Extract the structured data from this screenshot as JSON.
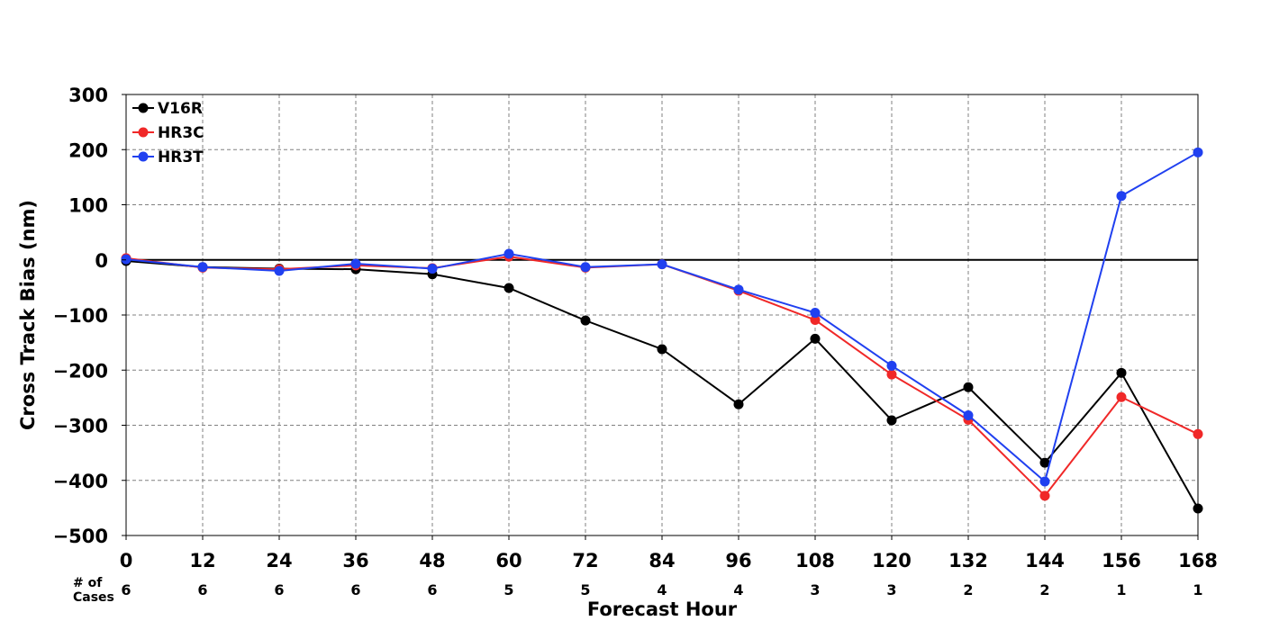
{
  "chart_data": {
    "type": "line",
    "title": "",
    "xlabel": "Forecast Hour",
    "ylabel": "Cross Track Bias (nm)",
    "xlim": [
      0,
      168
    ],
    "ylim": [
      -500,
      300
    ],
    "x": [
      0,
      12,
      24,
      36,
      48,
      60,
      72,
      84,
      96,
      108,
      120,
      132,
      144,
      156,
      168
    ],
    "x_ticks": [
      "0",
      "12",
      "24",
      "36",
      "48",
      "60",
      "72",
      "84",
      "96",
      "108",
      "120",
      "132",
      "144",
      "156",
      "168"
    ],
    "y_ticks": [
      {
        "value": 300,
        "label": "300"
      },
      {
        "value": 200,
        "label": "200"
      },
      {
        "value": 100,
        "label": "100"
      },
      {
        "value": 0,
        "label": "0"
      },
      {
        "value": -100,
        "label": "−100"
      },
      {
        "value": -200,
        "label": "−200"
      },
      {
        "value": -300,
        "label": "−300"
      },
      {
        "value": -400,
        "label": "−400"
      },
      {
        "value": -500,
        "label": "−500"
      }
    ],
    "grid": true,
    "legend_position": "top-left",
    "cases_label_line1": "# of",
    "cases_label_line2": "Cases",
    "cases": [
      "6",
      "6",
      "6",
      "6",
      "6",
      "5",
      "5",
      "4",
      "4",
      "3",
      "3",
      "2",
      "2",
      "1",
      "1"
    ],
    "series": [
      {
        "name": "V16R",
        "color": "#000000",
        "values": [
          -2,
          -13,
          -16,
          -17,
          -26,
          -51,
          -110,
          -162,
          -262,
          -143,
          -291,
          -231,
          -368,
          -205,
          -451
        ]
      },
      {
        "name": "HR3C",
        "color": "#f02828",
        "values": [
          3,
          -14,
          -17,
          -10,
          -15,
          6,
          -14,
          -8,
          -56,
          -109,
          -208,
          -290,
          -428,
          -249,
          -316
        ]
      },
      {
        "name": "HR3T",
        "color": "#2040f0",
        "values": [
          1,
          -13,
          -20,
          -7,
          -16,
          11,
          -13,
          -8,
          -54,
          -96,
          -192,
          -282,
          -402,
          116,
          195
        ]
      }
    ]
  }
}
